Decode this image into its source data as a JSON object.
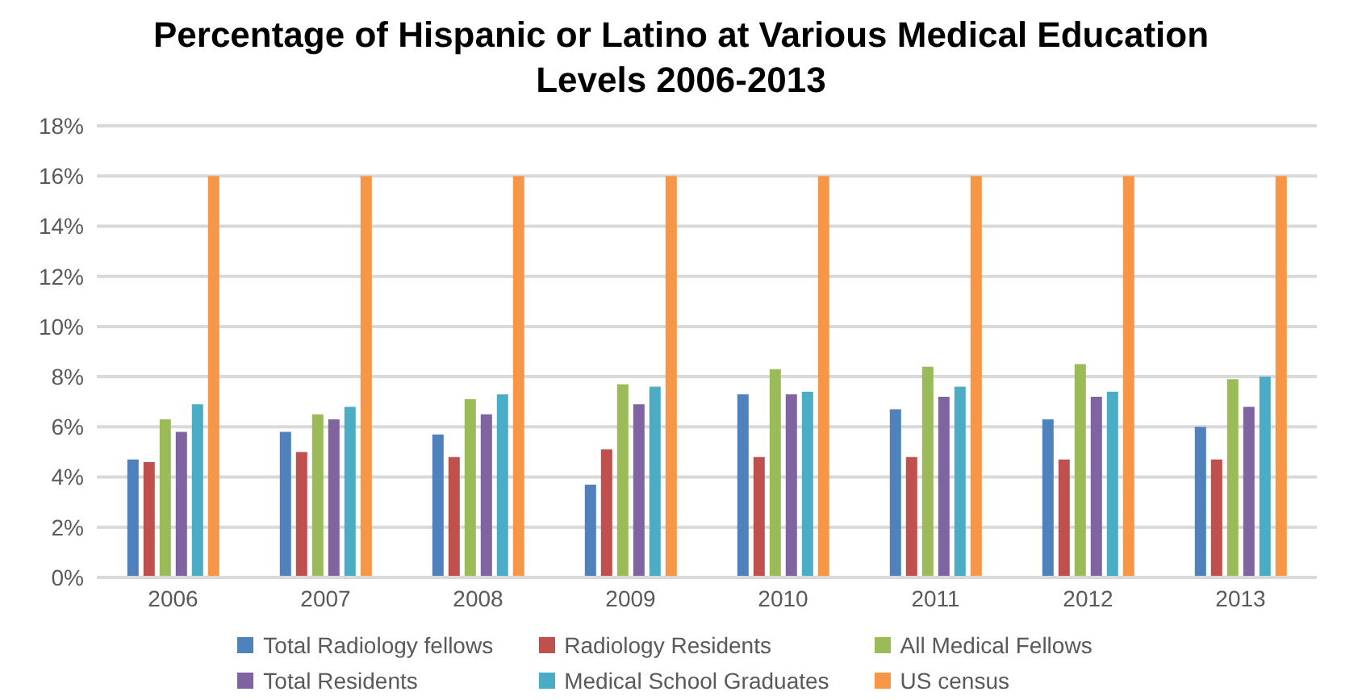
{
  "chart_data": {
    "type": "bar",
    "title": "Percentage of Hispanic or Latino at Various Medical Education Levels 2006-2013",
    "categories": [
      "2006",
      "2007",
      "2008",
      "2009",
      "2010",
      "2011",
      "2012",
      "2013"
    ],
    "series": [
      {
        "name": "Total Radiology fellows",
        "color": "#4f81bd",
        "values": [
          4.7,
          5.8,
          5.7,
          3.7,
          7.3,
          6.7,
          6.3,
          6.0
        ]
      },
      {
        "name": "Radiology Residents",
        "color": "#c0504d",
        "values": [
          4.6,
          5.0,
          4.8,
          5.1,
          4.8,
          4.8,
          4.7,
          4.7
        ]
      },
      {
        "name": "All Medical Fellows",
        "color": "#9bbb59",
        "values": [
          6.3,
          6.5,
          7.1,
          7.7,
          8.3,
          8.4,
          8.5,
          7.9
        ]
      },
      {
        "name": "Total Residents",
        "color": "#8064a2",
        "values": [
          5.8,
          6.3,
          6.5,
          6.9,
          7.3,
          7.2,
          7.2,
          6.8
        ]
      },
      {
        "name": "Medical School Graduates",
        "color": "#4bacc6",
        "values": [
          6.9,
          6.8,
          7.3,
          7.6,
          7.4,
          7.6,
          7.4,
          8.0
        ]
      },
      {
        "name": "US census",
        "color": "#f79646",
        "values": [
          16,
          16,
          16,
          16,
          16,
          16,
          16,
          16
        ]
      }
    ],
    "ylim": [
      0,
      18
    ],
    "yticks": [
      {
        "value": 0,
        "label": "0%"
      },
      {
        "value": 2,
        "label": "2%"
      },
      {
        "value": 4,
        "label": "4%"
      },
      {
        "value": 6,
        "label": "6%"
      },
      {
        "value": 8,
        "label": "8%"
      },
      {
        "value": 10,
        "label": "10%"
      },
      {
        "value": 12,
        "label": "12%"
      },
      {
        "value": 14,
        "label": "14%"
      },
      {
        "value": 16,
        "label": "16%"
      },
      {
        "value": 18,
        "label": "18%"
      }
    ],
    "grid": "y",
    "legend": "bottom"
  }
}
